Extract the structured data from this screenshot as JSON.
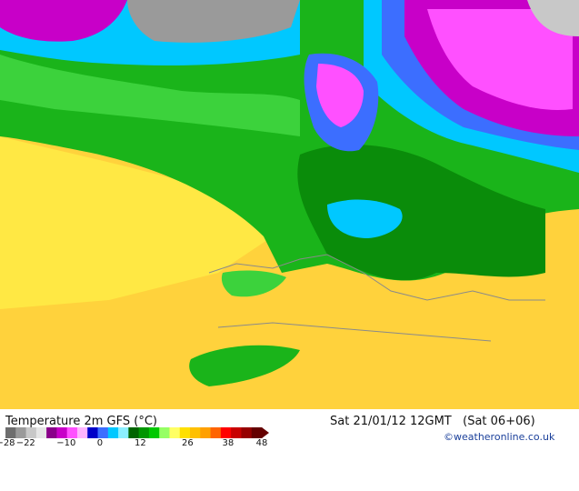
{
  "map": {
    "title": "Temperature 2m GFS (°C)",
    "datetime": "Sat 21/01/12 12GMT   (Sat 06+06)",
    "credit": "©weatheronline.co.uk"
  },
  "legend": {
    "colors": [
      "#6e6e6e",
      "#9a9a9a",
      "#c8c8c8",
      "#e6e6e6",
      "#8a008a",
      "#c800c8",
      "#ff50ff",
      "#ffb4ff",
      "#0000c8",
      "#3c6eff",
      "#00c8ff",
      "#8cf0ff",
      "#006400",
      "#009600",
      "#00c800",
      "#96ff64",
      "#ffff64",
      "#ffe000",
      "#ffc000",
      "#ffa000",
      "#ff6400",
      "#ff0000",
      "#c80000",
      "#960000",
      "#640000"
    ],
    "tick_labels": [
      {
        "label": "−28",
        "value": -28
      },
      {
        "label": "−22",
        "value": -22
      },
      {
        "label": "−10",
        "value": -10
      },
      {
        "label": "0",
        "value": 0
      },
      {
        "label": "12",
        "value": 12
      },
      {
        "label": "26",
        "value": 26
      },
      {
        "label": "38",
        "value": 38
      },
      {
        "label": "48",
        "value": 48
      }
    ],
    "range": [
      -28,
      48
    ]
  }
}
